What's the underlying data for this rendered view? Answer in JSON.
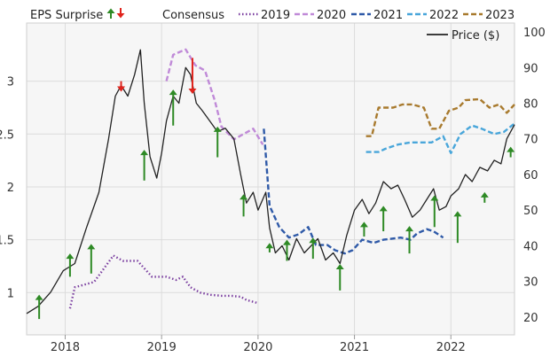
{
  "chart_data": {
    "type": "line",
    "title": "",
    "legend": {
      "eps_surprise_label": "EPS Surprise",
      "consensus_label": "Consensus",
      "series": [
        {
          "name": "2019",
          "color": "#7b3fa0",
          "style": "dotted"
        },
        {
          "name": "2020",
          "color": "#c08ad8",
          "style": "dashed"
        },
        {
          "name": "2021",
          "color": "#2f5aa8",
          "style": "dashed"
        },
        {
          "name": "2022",
          "color": "#49a6da",
          "style": "dashed"
        },
        {
          "name": "2023",
          "color": "#a87a2e",
          "style": "dashed"
        }
      ],
      "price_label": "Price ($)",
      "price_color": "#222222",
      "up_arrow_color": "#2e8a25",
      "down_arrow_color": "#e0231c",
      "placement": "top"
    },
    "x_axis": {
      "min": 2017.6,
      "max": 2022.66,
      "ticks": [
        2018,
        2019,
        2020,
        2021,
        2022
      ],
      "tick_labels": [
        "2018",
        "2019",
        "2020",
        "2021",
        "2022"
      ]
    },
    "y_left": {
      "min": 0.6,
      "max": 3.55,
      "ticks": [
        1,
        1.5,
        2,
        2.5,
        3
      ],
      "tick_labels": [
        "1",
        "1.5",
        "2",
        "2.5",
        "3"
      ]
    },
    "y_right": {
      "min": 15,
      "max": 102.5,
      "ticks": [
        20,
        30,
        40,
        50,
        60,
        70,
        80,
        90,
        100
      ],
      "tick_labels": [
        "20",
        "30",
        "40",
        "50",
        "60",
        "70",
        "80",
        "90",
        "100"
      ]
    },
    "grid": true,
    "price": [
      [
        2017.6,
        21
      ],
      [
        2017.72,
        23
      ],
      [
        2017.85,
        27
      ],
      [
        2017.98,
        33
      ],
      [
        2018.1,
        35
      ],
      [
        2018.22,
        45
      ],
      [
        2018.35,
        55
      ],
      [
        2018.45,
        70
      ],
      [
        2018.52,
        82
      ],
      [
        2018.58,
        85
      ],
      [
        2018.65,
        82
      ],
      [
        2018.72,
        88
      ],
      [
        2018.78,
        95
      ],
      [
        2018.82,
        80
      ],
      [
        2018.88,
        65
      ],
      [
        2018.95,
        59
      ],
      [
        2019.0,
        66
      ],
      [
        2019.05,
        75
      ],
      [
        2019.12,
        82
      ],
      [
        2019.18,
        80
      ],
      [
        2019.25,
        90
      ],
      [
        2019.3,
        88
      ],
      [
        2019.36,
        80
      ],
      [
        2019.42,
        78
      ],
      [
        2019.5,
        75
      ],
      [
        2019.58,
        72
      ],
      [
        2019.66,
        73
      ],
      [
        2019.75,
        70
      ],
      [
        2019.82,
        60
      ],
      [
        2019.88,
        52
      ],
      [
        2019.95,
        55
      ],
      [
        2020.0,
        50
      ],
      [
        2020.08,
        55
      ],
      [
        2020.12,
        45
      ],
      [
        2020.18,
        38
      ],
      [
        2020.25,
        40
      ],
      [
        2020.32,
        36
      ],
      [
        2020.4,
        42
      ],
      [
        2020.48,
        38
      ],
      [
        2020.55,
        40
      ],
      [
        2020.62,
        42
      ],
      [
        2020.7,
        36
      ],
      [
        2020.78,
        38
      ],
      [
        2020.85,
        35
      ],
      [
        2020.92,
        43
      ],
      [
        2021.0,
        50
      ],
      [
        2021.08,
        53
      ],
      [
        2021.15,
        49
      ],
      [
        2021.22,
        52
      ],
      [
        2021.3,
        58
      ],
      [
        2021.38,
        56
      ],
      [
        2021.45,
        57
      ],
      [
        2021.52,
        53
      ],
      [
        2021.6,
        48
      ],
      [
        2021.68,
        50
      ],
      [
        2021.75,
        53
      ],
      [
        2021.82,
        56
      ],
      [
        2021.88,
        50
      ],
      [
        2021.95,
        51
      ],
      [
        2022.0,
        54
      ],
      [
        2022.08,
        56
      ],
      [
        2022.15,
        60
      ],
      [
        2022.22,
        58
      ],
      [
        2022.3,
        62
      ],
      [
        2022.38,
        61
      ],
      [
        2022.45,
        64
      ],
      [
        2022.52,
        63
      ],
      [
        2022.58,
        70
      ],
      [
        2022.66,
        74
      ]
    ],
    "consensus": [
      {
        "name": "2019",
        "points": [
          [
            2018.05,
            0.85
          ],
          [
            2018.1,
            1.05
          ],
          [
            2018.3,
            1.1
          ],
          [
            2018.42,
            1.25
          ],
          [
            2018.5,
            1.35
          ],
          [
            2018.6,
            1.3
          ],
          [
            2018.75,
            1.3
          ],
          [
            2018.9,
            1.15
          ],
          [
            2019.05,
            1.15
          ],
          [
            2019.15,
            1.12
          ],
          [
            2019.22,
            1.15
          ],
          [
            2019.3,
            1.05
          ],
          [
            2019.4,
            1.0
          ],
          [
            2019.5,
            0.98
          ],
          [
            2019.62,
            0.97
          ],
          [
            2019.72,
            0.97
          ],
          [
            2019.82,
            0.96
          ],
          [
            2019.88,
            0.93
          ],
          [
            2020.0,
            0.9
          ]
        ]
      },
      {
        "name": "2020",
        "points": [
          [
            2019.05,
            3.0
          ],
          [
            2019.12,
            3.25
          ],
          [
            2019.25,
            3.3
          ],
          [
            2019.35,
            3.15
          ],
          [
            2019.45,
            3.1
          ],
          [
            2019.55,
            2.82
          ],
          [
            2019.62,
            2.57
          ],
          [
            2019.75,
            2.45
          ],
          [
            2019.95,
            2.55
          ],
          [
            2020.05,
            2.4
          ]
        ]
      },
      {
        "name": "2021",
        "points": [
          [
            2020.06,
            2.55
          ],
          [
            2020.12,
            1.82
          ],
          [
            2020.22,
            1.62
          ],
          [
            2020.32,
            1.52
          ],
          [
            2020.42,
            1.55
          ],
          [
            2020.52,
            1.62
          ],
          [
            2020.6,
            1.45
          ],
          [
            2020.72,
            1.45
          ],
          [
            2020.8,
            1.4
          ],
          [
            2020.9,
            1.37
          ],
          [
            2020.98,
            1.4
          ],
          [
            2021.08,
            1.5
          ],
          [
            2021.2,
            1.47
          ],
          [
            2021.3,
            1.5
          ],
          [
            2021.48,
            1.52
          ],
          [
            2021.58,
            1.5
          ],
          [
            2021.65,
            1.56
          ],
          [
            2021.75,
            1.6
          ],
          [
            2021.82,
            1.58
          ],
          [
            2021.92,
            1.52
          ]
        ]
      },
      {
        "name": "2022",
        "points": [
          [
            2021.12,
            2.33
          ],
          [
            2021.25,
            2.33
          ],
          [
            2021.32,
            2.36
          ],
          [
            2021.45,
            2.4
          ],
          [
            2021.58,
            2.42
          ],
          [
            2021.7,
            2.42
          ],
          [
            2021.8,
            2.42
          ],
          [
            2021.92,
            2.48
          ],
          [
            2022.0,
            2.32
          ],
          [
            2022.1,
            2.5
          ],
          [
            2022.22,
            2.58
          ],
          [
            2022.32,
            2.55
          ],
          [
            2022.45,
            2.5
          ],
          [
            2022.55,
            2.52
          ],
          [
            2022.66,
            2.6
          ]
        ]
      },
      {
        "name": "2023",
        "points": [
          [
            2021.12,
            2.48
          ],
          [
            2021.18,
            2.48
          ],
          [
            2021.25,
            2.75
          ],
          [
            2021.4,
            2.75
          ],
          [
            2021.5,
            2.78
          ],
          [
            2021.6,
            2.78
          ],
          [
            2021.72,
            2.75
          ],
          [
            2021.8,
            2.55
          ],
          [
            2021.88,
            2.55
          ],
          [
            2021.98,
            2.72
          ],
          [
            2022.08,
            2.75
          ],
          [
            2022.15,
            2.82
          ],
          [
            2022.3,
            2.83
          ],
          [
            2022.4,
            2.75
          ],
          [
            2022.5,
            2.78
          ],
          [
            2022.58,
            2.7
          ],
          [
            2022.66,
            2.78
          ]
        ]
      }
    ],
    "eps_surprise_arrows": [
      {
        "x": 2017.73,
        "direction": "up",
        "from": 0.75,
        "to": 0.98
      },
      {
        "x": 2018.05,
        "direction": "up",
        "from": 1.15,
        "to": 1.37
      },
      {
        "x": 2018.27,
        "direction": "up",
        "from": 1.18,
        "to": 1.46
      },
      {
        "x": 2018.58,
        "direction": "down",
        "from": 3.0,
        "to": 2.9
      },
      {
        "x": 2018.82,
        "direction": "up",
        "from": 2.06,
        "to": 2.35
      },
      {
        "x": 2019.12,
        "direction": "up",
        "from": 2.58,
        "to": 2.92
      },
      {
        "x": 2019.32,
        "direction": "down",
        "from": 3.22,
        "to": 2.88
      },
      {
        "x": 2019.58,
        "direction": "up",
        "from": 2.28,
        "to": 2.57
      },
      {
        "x": 2019.85,
        "direction": "up",
        "from": 1.72,
        "to": 1.93
      },
      {
        "x": 2020.12,
        "direction": "up",
        "from": 1.38,
        "to": 1.47
      },
      {
        "x": 2020.3,
        "direction": "up",
        "from": 1.3,
        "to": 1.5
      },
      {
        "x": 2020.57,
        "direction": "up",
        "from": 1.32,
        "to": 1.52
      },
      {
        "x": 2020.85,
        "direction": "up",
        "from": 1.02,
        "to": 1.27
      },
      {
        "x": 2021.1,
        "direction": "up",
        "from": 1.53,
        "to": 1.67
      },
      {
        "x": 2021.3,
        "direction": "up",
        "from": 1.58,
        "to": 1.82
      },
      {
        "x": 2021.57,
        "direction": "up",
        "from": 1.37,
        "to": 1.63
      },
      {
        "x": 2021.83,
        "direction": "up",
        "from": 1.62,
        "to": 1.92
      },
      {
        "x": 2022.07,
        "direction": "up",
        "from": 1.47,
        "to": 1.77
      },
      {
        "x": 2022.35,
        "direction": "up",
        "from": 1.85,
        "to": 1.95
      },
      {
        "x": 2022.62,
        "direction": "up",
        "from": 2.28,
        "to": 2.38
      }
    ]
  }
}
